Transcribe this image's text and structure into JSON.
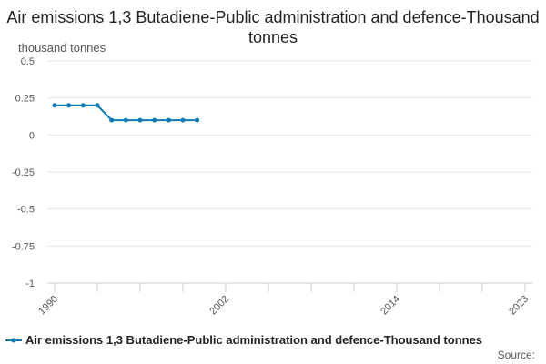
{
  "chart_data": {
    "type": "line",
    "title": "Air emissions 1,3 Butadiene-Public administration and defence-Thousand tonnes",
    "ylabel": "thousand tonnes",
    "xlabel": "",
    "ylim": [
      -1,
      0.5
    ],
    "xlim": [
      1990,
      2023
    ],
    "y_ticks": [
      0.5,
      0.25,
      0,
      -0.25,
      -0.5,
      -0.75,
      -1
    ],
    "y_tick_labels": [
      "0.5",
      "0.25",
      "0",
      "-0.25",
      "-0.5",
      "-0.75",
      "-1"
    ],
    "x_minor_ticks": [
      1990,
      1993,
      1996,
      1999,
      2002,
      2005,
      2008,
      2011,
      2014,
      2017,
      2020,
      2023
    ],
    "x_tick_labels": [
      "1990",
      "2002",
      "2014",
      "2023"
    ],
    "x_tick_values": [
      1990,
      2002,
      2014,
      2023
    ],
    "grid": "horizontal",
    "legend_position": "bottom",
    "series": [
      {
        "name": "Air emissions 1,3 Butadiene-Public administration and defence-Thousand tonnes",
        "color": "#0f7ab5",
        "x": [
          1990,
          1991,
          1992,
          1993,
          1994,
          1995,
          1996,
          1997,
          1998,
          1999,
          2000
        ],
        "values": [
          0.2,
          0.2,
          0.2,
          0.2,
          0.1,
          0.1,
          0.1,
          0.1,
          0.1,
          0.1,
          0.1
        ]
      }
    ],
    "source_label": "Source:"
  }
}
